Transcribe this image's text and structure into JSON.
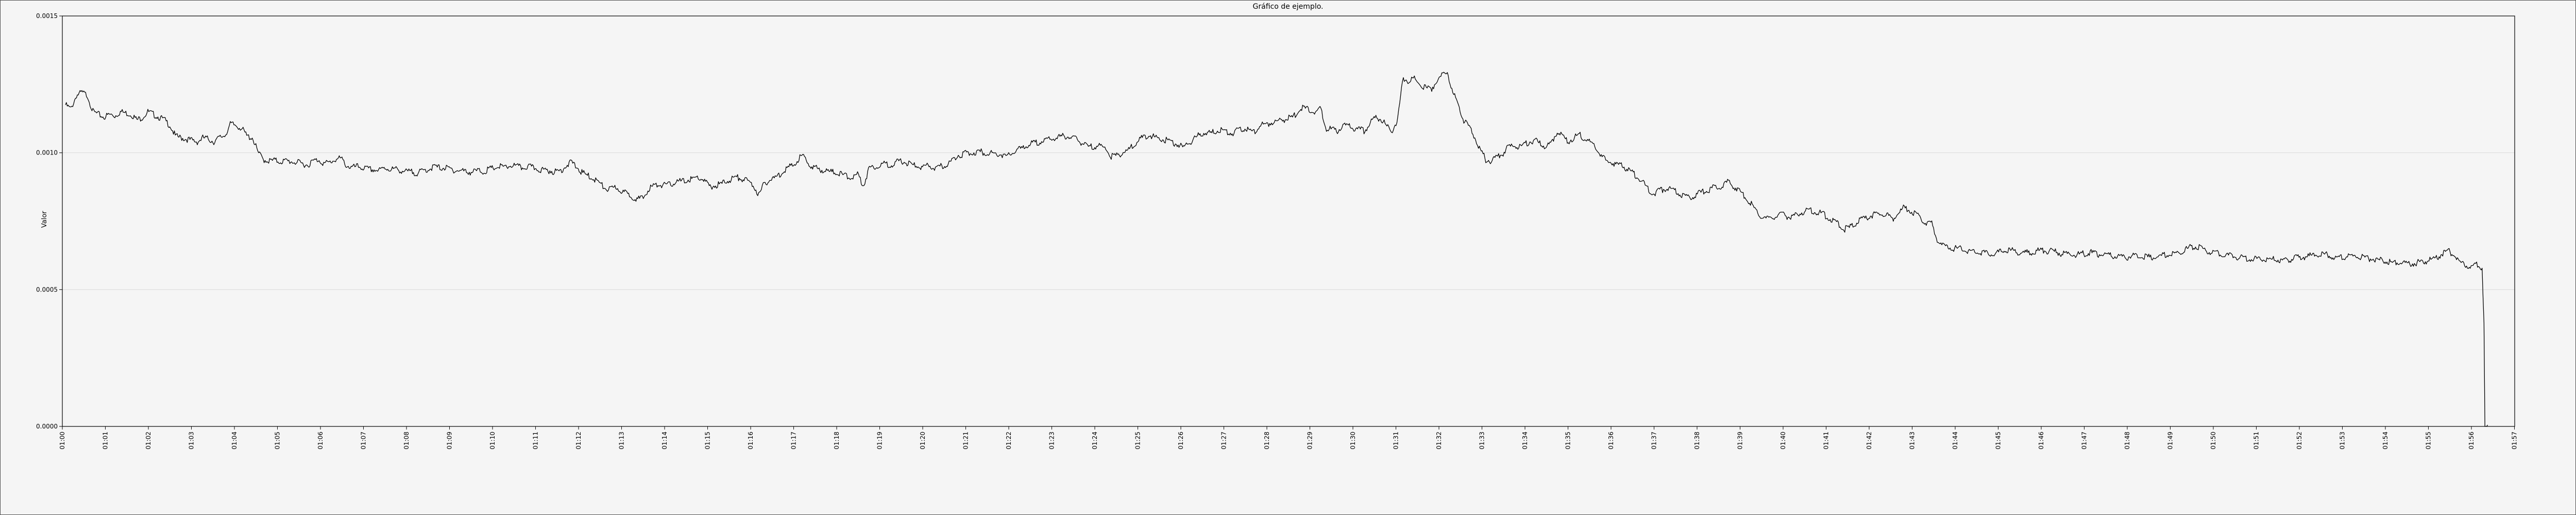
{
  "chart_data": {
    "type": "line",
    "title": "Gráfico de ejemplo.",
    "xlabel": "",
    "ylabel": "Valor",
    "ylim": [
      0.0,
      0.0015
    ],
    "y_ticks": [
      "0.0000",
      "0.0005",
      "0.0010",
      "0.0015"
    ],
    "y_tick_values": [
      0.0,
      0.0005,
      0.001,
      0.0015
    ],
    "x_ticks": [
      "01:00",
      "01:01",
      "01:02",
      "01:03",
      "01:04",
      "01:05",
      "01:06",
      "01:07",
      "01:08",
      "01:09",
      "01:10",
      "01:11",
      "01:12",
      "01:13",
      "01:14",
      "01:15",
      "01:16",
      "01:17",
      "01:18",
      "01:19",
      "01:20",
      "01:21",
      "01:22",
      "01:23",
      "01:24",
      "01:25",
      "01:26",
      "01:27",
      "01:28",
      "01:29",
      "01:30",
      "01:31",
      "01:32",
      "01:33",
      "01:34",
      "01:35",
      "01:36",
      "01:37",
      "01:38",
      "01:39",
      "01:40",
      "01:41",
      "01:42",
      "01:43",
      "01:44",
      "01:45",
      "01:46",
      "01:47",
      "01:48",
      "01:49",
      "01:50",
      "01:51",
      "01:52",
      "01:53",
      "01:54",
      "01:55",
      "01:56",
      "01:57"
    ],
    "grid": "horizontal",
    "line_color": "#000000",
    "series": [
      {
        "values": [
          0.001175,
          0.00116,
          0.00121,
          0.00122,
          0.00121,
          0.00115,
          0.00114,
          0.00113,
          0.00114,
          0.001135,
          0.00115,
          0.001145,
          0.00114,
          0.00112,
          0.00113,
          0.00115,
          0.00114,
          0.00113,
          0.00112,
          0.0011,
          0.00106,
          0.001055,
          0.00105,
          0.001045,
          0.00104,
          0.001055,
          0.00105,
          0.00104,
          0.001055,
          0.001065,
          0.001105,
          0.0011,
          0.00109,
          0.00106,
          0.001055,
          0.001,
          0.000975,
          0.00097,
          0.000972,
          0.000968,
          0.00097,
          0.000968,
          0.000965,
          0.00096,
          0.000955,
          0.00097,
          0.000975,
          0.00096,
          0.000965,
          0.000975,
          0.00098,
          0.000955,
          0.000945,
          0.00095,
          0.000945,
          0.00094,
          0.000938,
          0.000935,
          0.000945,
          0.00094,
          0.00094,
          0.000935,
          0.00093,
          0.00093,
          0.000925,
          0.000935,
          0.00094,
          0.00095,
          0.000945,
          0.000945,
          0.00094,
          0.000935,
          0.000935,
          0.00093,
          0.00093,
          0.000935,
          0.00093,
          0.00094,
          0.000945,
          0.00095,
          0.000945,
          0.000955,
          0.00095,
          0.000945,
          0.00095,
          0.000945,
          0.00094,
          0.000935,
          0.000935,
          0.00093,
          0.000935,
          0.000955,
          0.000965,
          0.000945,
          0.000925,
          0.000915,
          0.000905,
          0.00089,
          0.00087,
          0.000865,
          0.000875,
          0.00086,
          0.00085,
          0.00084,
          0.00083,
          0.000835,
          0.00087,
          0.00088,
          0.000885,
          0.00088,
          0.000885,
          0.000895,
          0.000895,
          0.0009,
          0.000905,
          0.00091,
          0.0009,
          0.000875,
          0.00088,
          0.000885,
          0.000895,
          0.000905,
          0.00091,
          0.000905,
          0.000895,
          0.00088,
          0.000845,
          0.00089,
          0.0009,
          0.00091,
          0.000925,
          0.000945,
          0.00095,
          0.000975,
          0.00099,
          0.00096,
          0.000945,
          0.00094,
          0.000935,
          0.00093,
          0.00093,
          0.00092,
          0.000915,
          0.00091,
          0.00092,
          0.00088,
          0.000945,
          0.00095,
          0.000955,
          0.00096,
          0.000955,
          0.000965,
          0.00097,
          0.00096,
          0.000955,
          0.00095,
          0.000945,
          0.000955,
          0.00094,
          0.00095,
          0.000955,
          0.00097,
          0.00099,
          0.000995,
          0.001,
          0.001,
          0.001005,
          0.001,
          0.001,
          0.000995,
          0.000995,
          0.000985,
          0.001,
          0.00101,
          0.00102,
          0.00103,
          0.001035,
          0.00104,
          0.001045,
          0.00105,
          0.001055,
          0.00106,
          0.00106,
          0.001055,
          0.001045,
          0.00103,
          0.00102,
          0.001025,
          0.001025,
          0.001015,
          0.000985,
          0.00099,
          0.001,
          0.00101,
          0.001025,
          0.001045,
          0.00106,
          0.001065,
          0.001055,
          0.00105,
          0.001045,
          0.00104,
          0.00103,
          0.00102,
          0.001035,
          0.00105,
          0.001065,
          0.001075,
          0.00107,
          0.00108,
          0.001085,
          0.001075,
          0.00107,
          0.001085,
          0.00109,
          0.00108,
          0.001075,
          0.0011,
          0.001105,
          0.00111,
          0.001115,
          0.00112,
          0.001125,
          0.00113,
          0.001155,
          0.001165,
          0.001155,
          0.00115,
          0.00116,
          0.00109,
          0.001085,
          0.00108,
          0.001095,
          0.0011,
          0.00109,
          0.001085,
          0.00108,
          0.00111,
          0.00113,
          0.001125,
          0.001095,
          0.00108,
          0.00112,
          0.001275,
          0.00126,
          0.00127,
          0.00125,
          0.00124,
          0.00123,
          0.00126,
          0.00128,
          0.0013,
          0.00122,
          0.00118,
          0.00112,
          0.001095,
          0.00106,
          0.00101,
          0.000975,
          0.00097,
          0.000985,
          0.000995,
          0.00102,
          0.001025,
          0.00102,
          0.00103,
          0.00104,
          0.001045,
          0.00103,
          0.00102,
          0.00104,
          0.00108,
          0.00106,
          0.00104,
          0.001055,
          0.00107,
          0.00105,
          0.00104,
          0.00102,
          0.000985,
          0.00097,
          0.000965,
          0.000955,
          0.00095,
          0.000935,
          0.00092,
          0.000905,
          0.00088,
          0.00085,
          0.000855,
          0.000865,
          0.00087,
          0.000865,
          0.000855,
          0.00084,
          0.000835,
          0.000845,
          0.000855,
          0.00086,
          0.00087,
          0.000875,
          0.00088,
          0.000895,
          0.00088,
          0.00086,
          0.00084,
          0.00082,
          0.00079,
          0.00077,
          0.00076,
          0.000765,
          0.00077,
          0.000775,
          0.000765,
          0.00077,
          0.00078,
          0.000785,
          0.00079,
          0.000785,
          0.00078,
          0.000765,
          0.000755,
          0.00074,
          0.00072,
          0.000725,
          0.00074,
          0.000755,
          0.00076,
          0.00077,
          0.000775,
          0.00078,
          0.00077,
          0.00076,
          0.00078,
          0.0008,
          0.00079,
          0.000775,
          0.000765,
          0.00074,
          0.000745,
          0.00068,
          0.00066,
          0.000655,
          0.00065,
          0.00065,
          0.000645,
          0.00064,
          0.00064,
          0.000635,
          0.000635,
          0.00063,
          0.000635,
          0.00064,
          0.000645,
          0.00064,
          0.000635,
          0.000635,
          0.000635,
          0.00064,
          0.000645,
          0.00064,
          0.00064,
          0.000635,
          0.00063,
          0.00063,
          0.000628,
          0.00063,
          0.000632,
          0.000635,
          0.00063,
          0.000628,
          0.000625,
          0.000622,
          0.00062,
          0.000618,
          0.00062,
          0.000625,
          0.000622,
          0.00062,
          0.000618,
          0.000622,
          0.000625,
          0.000628,
          0.00063,
          0.000635,
          0.000645,
          0.000655,
          0.00066,
          0.00065,
          0.00064,
          0.000635,
          0.000632,
          0.00063,
          0.000625,
          0.00062,
          0.000618,
          0.000615,
          0.00061,
          0.000612,
          0.000615,
          0.000612,
          0.00061,
          0.000608,
          0.000605,
          0.00061,
          0.000615,
          0.000618,
          0.00062,
          0.000625,
          0.000628,
          0.00063,
          0.000625,
          0.00062,
          0.000618,
          0.00062,
          0.000622,
          0.00062,
          0.000618,
          0.000615,
          0.000612,
          0.00061,
          0.000605,
          0.0006,
          0.000598,
          0.0006,
          0.000598,
          0.000596,
          0.000598,
          0.0006,
          0.000605,
          0.00061,
          0.00062,
          0.000635,
          0.00064,
          0.000625,
          0.0006,
          0.00059,
          0.000585,
          0.00059,
          0.00058,
          0.0
        ]
      }
    ]
  }
}
